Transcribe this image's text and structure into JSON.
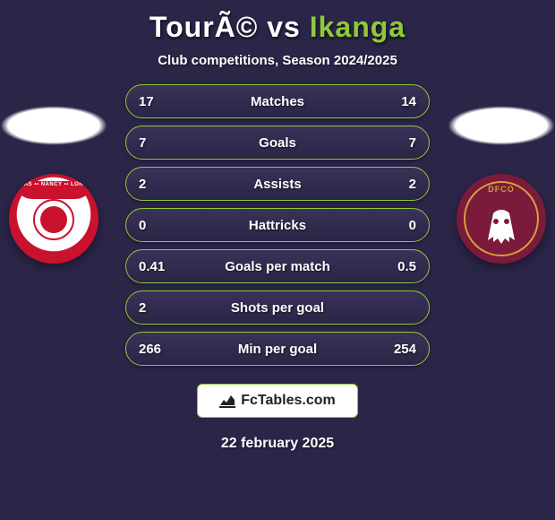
{
  "title": {
    "left": "TourÃ©",
    "vs": " vs ",
    "right": "Ikanga"
  },
  "subtitle": "Club competitions, Season 2024/2025",
  "date": "22 february 2025",
  "branding": "FcTables.com",
  "colors": {
    "accent": "#8fc93a",
    "bg": "#2b2548",
    "left_crest_primary": "#c9122e",
    "right_crest_primary": "#7b1a3a",
    "right_crest_gold": "#d4a03a"
  },
  "rows": [
    {
      "left": "17",
      "label": "Matches",
      "right": "14"
    },
    {
      "left": "7",
      "label": "Goals",
      "right": "7"
    },
    {
      "left": "2",
      "label": "Assists",
      "right": "2"
    },
    {
      "left": "0",
      "label": "Hattricks",
      "right": "0"
    },
    {
      "left": "0.41",
      "label": "Goals per match",
      "right": "0.5"
    },
    {
      "left": "2",
      "label": "Shots per goal",
      "right": ""
    },
    {
      "left": "266",
      "label": "Min per goal",
      "right": "254"
    }
  ]
}
